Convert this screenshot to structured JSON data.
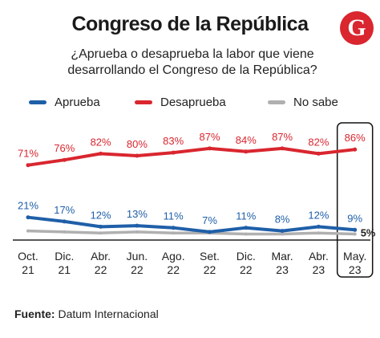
{
  "header": {
    "title": "Congreso de la República",
    "question_line1": "¿Aprueba o desaprueba la labor que viene",
    "question_line2": "desarrollando el Congreso de la República?",
    "logo_letter": "G"
  },
  "footer": {
    "source_label": "Fuente:",
    "source_value": "Datum Internacional"
  },
  "chart_data": {
    "type": "line",
    "categories": [
      [
        "Oct.",
        "21"
      ],
      [
        "Dic.",
        "21"
      ],
      [
        "Abr.",
        "22"
      ],
      [
        "Jun.",
        "22"
      ],
      [
        "Ago.",
        "22"
      ],
      [
        "Set.",
        "22"
      ],
      [
        "Dic.",
        "22"
      ],
      [
        "Mar.",
        "23"
      ],
      [
        "Abr.",
        "23"
      ],
      [
        "May.",
        "23"
      ]
    ],
    "series": [
      {
        "name": "Aprueba",
        "color": "#1f5fa8",
        "values": [
          21,
          17,
          12,
          13,
          11,
          7,
          11,
          8,
          12,
          9
        ],
        "labels": [
          "21%",
          "17%",
          "12%",
          "13%",
          "11%",
          "7%",
          "11%",
          "8%",
          "12%",
          "9%"
        ]
      },
      {
        "name": "Desaprueba",
        "color": "#d9262f",
        "values": [
          71,
          76,
          82,
          80,
          83,
          87,
          84,
          87,
          82,
          86
        ],
        "labels": [
          "71%",
          "76%",
          "82%",
          "80%",
          "83%",
          "87%",
          "84%",
          "87%",
          "82%",
          "86%"
        ]
      },
      {
        "name": "No sabe",
        "color": "#b0b0b0",
        "values": [
          8,
          7,
          6,
          7,
          6,
          6,
          5,
          5,
          6,
          5
        ],
        "labels": [
          "",
          "",
          "",
          "",
          "",
          "",
          "",
          "",
          "",
          "5%"
        ]
      }
    ],
    "highlight_category": 9,
    "ylim": [
      0,
      100
    ],
    "legend_position": "top"
  }
}
